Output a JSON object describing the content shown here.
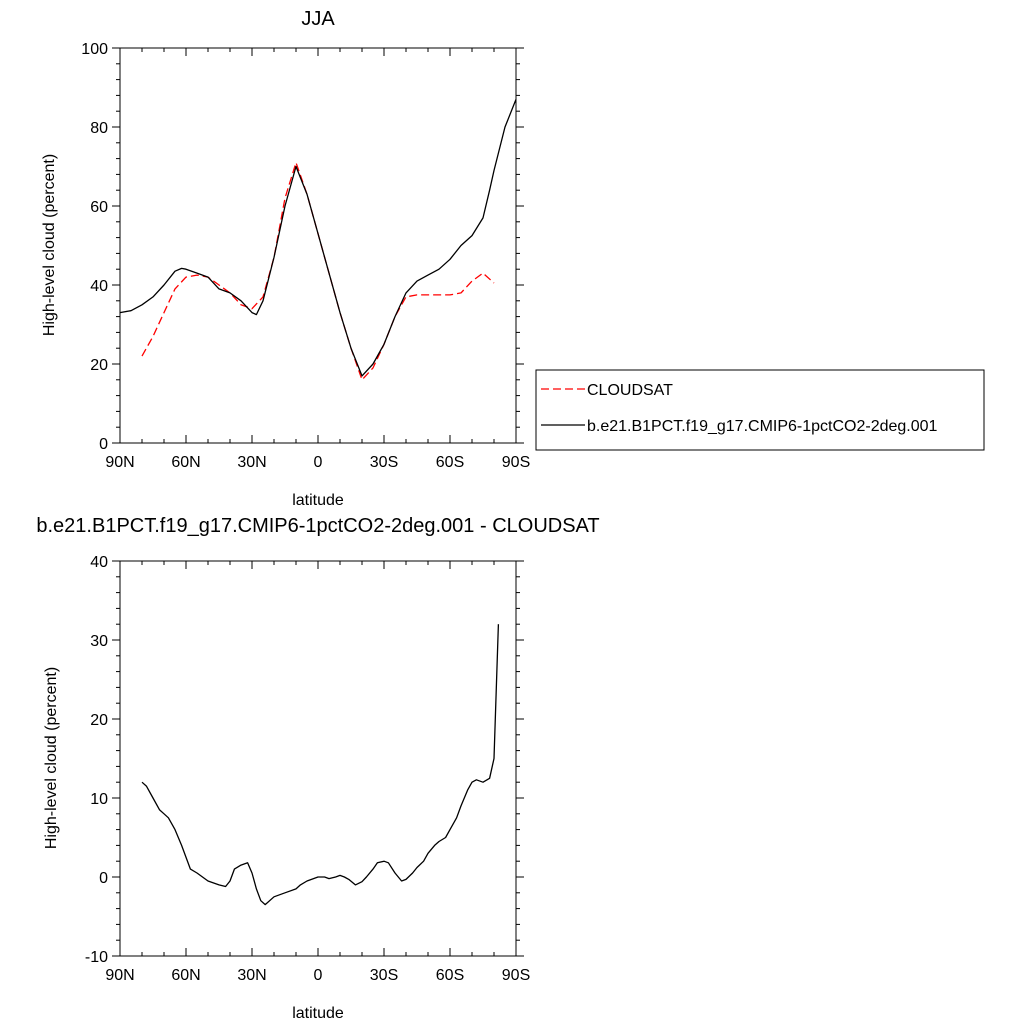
{
  "chart_data": [
    {
      "type": "line",
      "title": "JJA",
      "xlabel": "latitude",
      "ylabel": "High-level cloud (percent)",
      "xlim": [
        90,
        -90
      ],
      "ylim": [
        0,
        100
      ],
      "x_ticks": [
        {
          "value": 90,
          "label": "90N"
        },
        {
          "value": 60,
          "label": "60N"
        },
        {
          "value": 30,
          "label": "30N"
        },
        {
          "value": 0,
          "label": "0"
        },
        {
          "value": -30,
          "label": "30S"
        },
        {
          "value": -60,
          "label": "60S"
        },
        {
          "value": -90,
          "label": "90S"
        }
      ],
      "y_ticks": [
        0,
        20,
        40,
        60,
        80,
        100
      ],
      "legend_position": "right",
      "series": [
        {
          "name": "CLOUDSAT",
          "color": "#ff0000",
          "dash": "dashed",
          "x": [
            80,
            75,
            70,
            65,
            60,
            55,
            50,
            45,
            40,
            35,
            30,
            25,
            20,
            15,
            10,
            5,
            0,
            -5,
            -10,
            -15,
            -20,
            -25,
            -30,
            -35,
            -40,
            -45,
            -50,
            -55,
            -60,
            -65,
            -70,
            -75,
            -80
          ],
          "y": [
            22,
            27,
            33,
            39,
            42,
            42.5,
            42,
            40,
            38,
            35,
            34,
            37,
            47,
            62,
            71,
            63,
            53,
            43,
            33,
            24,
            16,
            19,
            25,
            32,
            37,
            37.5,
            37.5,
            37.5,
            37.5,
            38,
            41,
            43,
            40.5
          ]
        },
        {
          "name": "b.e21.B1PCT.f19_g17.CMIP6-1pctCO2-2deg.001",
          "color": "#000000",
          "dash": "solid",
          "x": [
            90,
            85,
            80,
            75,
            70,
            65,
            62,
            60,
            55,
            50,
            45,
            40,
            35,
            30,
            28,
            25,
            20,
            15,
            10,
            5,
            0,
            -5,
            -10,
            -15,
            -20,
            -25,
            -30,
            -35,
            -40,
            -45,
            -50,
            -55,
            -60,
            -65,
            -70,
            -75,
            -78,
            -80,
            -85,
            -90
          ],
          "y": [
            33,
            33.5,
            35,
            37,
            40,
            43.5,
            44.2,
            44,
            43,
            42,
            39,
            38,
            36,
            33,
            32.5,
            36,
            47,
            60,
            70,
            63,
            53,
            43,
            33,
            24,
            17,
            20,
            25,
            32,
            38,
            41,
            42.5,
            44,
            46.5,
            50,
            52.5,
            57,
            64,
            69,
            80,
            87
          ]
        }
      ]
    },
    {
      "type": "line",
      "title": "b.e21.B1PCT.f19_g17.CMIP6-1pctCO2-2deg.001 - CLOUDSAT",
      "xlabel": "latitude",
      "ylabel": "High-level cloud (percent)",
      "xlim": [
        90,
        -90
      ],
      "ylim": [
        -10,
        40
      ],
      "x_ticks": [
        {
          "value": 90,
          "label": "90N"
        },
        {
          "value": 60,
          "label": "60N"
        },
        {
          "value": 30,
          "label": "30N"
        },
        {
          "value": 0,
          "label": "0"
        },
        {
          "value": -30,
          "label": "30S"
        },
        {
          "value": -60,
          "label": "60S"
        },
        {
          "value": -90,
          "label": "90S"
        }
      ],
      "y_ticks": [
        -10,
        0,
        10,
        20,
        30,
        40
      ],
      "series": [
        {
          "color": "#000000",
          "dash": "solid",
          "x": [
            80,
            78,
            75,
            72,
            70,
            68,
            65,
            62,
            58,
            55,
            50,
            45,
            42,
            40,
            38,
            35,
            32,
            30,
            28,
            26,
            24,
            20,
            15,
            10,
            8,
            5,
            0,
            -3,
            -5,
            -8,
            -10,
            -12,
            -14,
            -17,
            -20,
            -22,
            -25,
            -27,
            -30,
            -32,
            -35,
            -38,
            -40,
            -43,
            -45,
            -48,
            -50,
            -53,
            -55,
            -58,
            -60,
            -63,
            -65,
            -68,
            -70,
            -72,
            -75,
            -78,
            -80,
            -82
          ],
          "y": [
            12,
            11.5,
            10,
            8.5,
            8,
            7.5,
            6,
            4,
            1,
            0.5,
            -0.5,
            -1,
            -1.2,
            -0.5,
            1,
            1.5,
            1.8,
            0.5,
            -1.5,
            -3,
            -3.5,
            -2.5,
            -2,
            -1.5,
            -1,
            -0.5,
            0,
            0,
            -0.2,
            0,
            0.2,
            0,
            -0.3,
            -1,
            -0.6,
            0,
            1,
            1.8,
            2,
            1.8,
            0.5,
            -0.5,
            -0.3,
            0.5,
            1.2,
            2,
            3,
            4,
            4.5,
            5,
            6,
            7.5,
            9,
            11,
            12,
            12.3,
            12,
            12.5,
            15,
            32
          ]
        }
      ]
    }
  ]
}
